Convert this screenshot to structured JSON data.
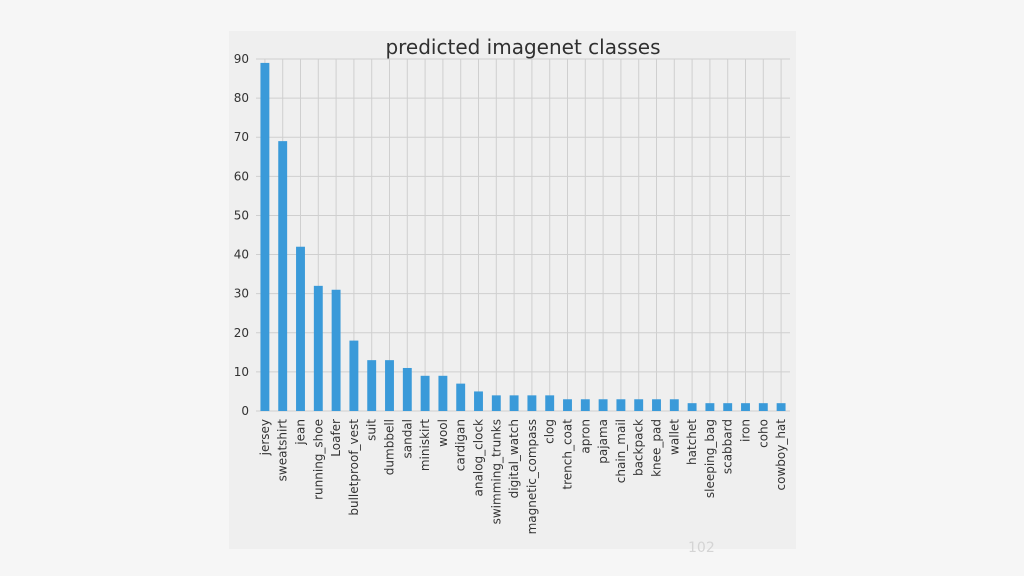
{
  "slide": {
    "page_number": "102"
  },
  "chart_data": {
    "type": "bar",
    "title": "predicted imagenet classes",
    "xlabel": "",
    "ylabel": "",
    "ylim": [
      0,
      90
    ],
    "yticks": [
      0,
      10,
      20,
      30,
      40,
      50,
      60,
      70,
      80,
      90
    ],
    "grid": true,
    "bar_color": "#3a9ad9",
    "categories": [
      "jersey",
      "sweatshirt",
      "jean",
      "running_shoe",
      "Loafer",
      "bulletproof_vest",
      "suit",
      "dumbbell",
      "sandal",
      "miniskirt",
      "wool",
      "cardigan",
      "analog_clock",
      "swimming_trunks",
      "digital_watch",
      "magnetic_compass",
      "clog",
      "trench_coat",
      "apron",
      "pajama",
      "chain_mail",
      "backpack",
      "knee_pad",
      "wallet",
      "hatchet",
      "sleeping_bag",
      "scabbard",
      "iron",
      "coho",
      "cowboy_hat"
    ],
    "values": [
      89,
      69,
      42,
      32,
      31,
      18,
      13,
      13,
      11,
      9,
      9,
      7,
      5,
      4,
      4,
      4,
      4,
      3,
      3,
      3,
      3,
      3,
      3,
      3,
      2,
      2,
      2,
      2,
      2,
      2
    ]
  }
}
